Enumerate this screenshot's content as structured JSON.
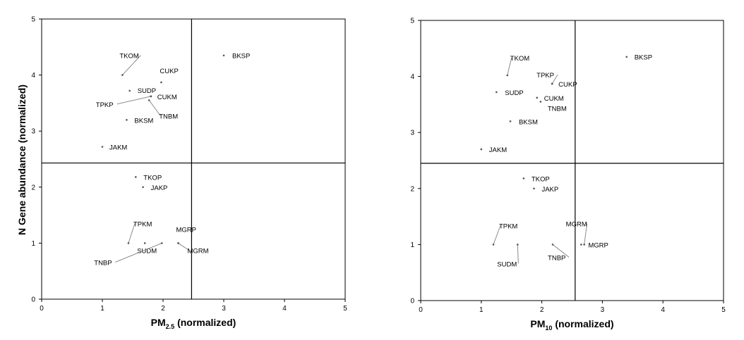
{
  "ylabel": "N Gene abundance (normalized)",
  "chart_data": [
    {
      "type": "scatter",
      "xlabel_main": "PM",
      "xlabel_sub": "2.5",
      "xlabel_tail": " (normalized)",
      "ylabel": "N Gene abundance (normalized)",
      "xlim": [
        0,
        5
      ],
      "ylim": [
        0,
        5
      ],
      "xticks": [
        "0",
        "1",
        "2",
        "3",
        "4",
        "5"
      ],
      "yticks": [
        "0",
        "1",
        "2",
        "3",
        "4",
        "5"
      ],
      "grid": false,
      "quadrant_lines": {
        "x": 2.47,
        "y": 2.43
      },
      "points": [
        {
          "label": "BKSP",
          "x": 3.0,
          "y": 4.35
        },
        {
          "label": "TKOM",
          "x": 1.33,
          "y": 4.0
        },
        {
          "label": "CUKP",
          "x": 1.97,
          "y": 3.87
        },
        {
          "label": "SUDP",
          "x": 1.45,
          "y": 3.72
        },
        {
          "label": "CUKM",
          "x": 1.8,
          "y": 3.62
        },
        {
          "label": "TPKP",
          "x": 1.8,
          "y": 3.62
        },
        {
          "label": "TNBM",
          "x": 1.77,
          "y": 3.55
        },
        {
          "label": "BKSM",
          "x": 1.4,
          "y": 3.2
        },
        {
          "label": "JAKM",
          "x": 1.0,
          "y": 2.72
        },
        {
          "label": "TKOP",
          "x": 1.55,
          "y": 2.18
        },
        {
          "label": "JAKP",
          "x": 1.67,
          "y": 2.0
        },
        {
          "label": "TPKM",
          "x": 1.43,
          "y": 1.0
        },
        {
          "label": "SUDM",
          "x": 1.7,
          "y": 1.0
        },
        {
          "label": "TNBP",
          "x": 1.98,
          "y": 1.0
        },
        {
          "label": "MGRP",
          "x": 2.25,
          "y": 1.0
        },
        {
          "label": "MGRM",
          "x": 2.25,
          "y": 1.0
        }
      ]
    },
    {
      "type": "scatter",
      "xlabel_main": "PM",
      "xlabel_sub": "10",
      "xlabel_tail": " (normalized)",
      "ylabel": "",
      "xlim": [
        0,
        5
      ],
      "ylim": [
        0,
        5
      ],
      "xticks": [
        "0",
        "1",
        "2",
        "3",
        "4",
        "5"
      ],
      "yticks": [
        "0",
        "1",
        "2",
        "3",
        "4",
        "5"
      ],
      "grid": false,
      "quadrant_lines": {
        "x": 2.55,
        "y": 2.45
      },
      "points": [
        {
          "label": "BKSP",
          "x": 3.4,
          "y": 4.35
        },
        {
          "label": "TKOM",
          "x": 1.43,
          "y": 4.02
        },
        {
          "label": "CUKP",
          "x": 2.17,
          "y": 3.87
        },
        {
          "label": "TPKP",
          "x": 2.17,
          "y": 3.87
        },
        {
          "label": "SUDP",
          "x": 1.25,
          "y": 3.72
        },
        {
          "label": "CUKM",
          "x": 1.92,
          "y": 3.62
        },
        {
          "label": "TNBM",
          "x": 1.98,
          "y": 3.55
        },
        {
          "label": "BKSM",
          "x": 1.48,
          "y": 3.2
        },
        {
          "label": "JAKM",
          "x": 1.0,
          "y": 2.7
        },
        {
          "label": "TKOP",
          "x": 1.7,
          "y": 2.18
        },
        {
          "label": "JAKP",
          "x": 1.87,
          "y": 2.0
        },
        {
          "label": "TPKM",
          "x": 1.2,
          "y": 1.0
        },
        {
          "label": "SUDM",
          "x": 1.6,
          "y": 1.0
        },
        {
          "label": "TNBP",
          "x": 2.18,
          "y": 1.0
        },
        {
          "label": "MGRM",
          "x": 2.7,
          "y": 1.0
        },
        {
          "label": "MGRP",
          "x": 2.65,
          "y": 1.0
        }
      ]
    }
  ]
}
